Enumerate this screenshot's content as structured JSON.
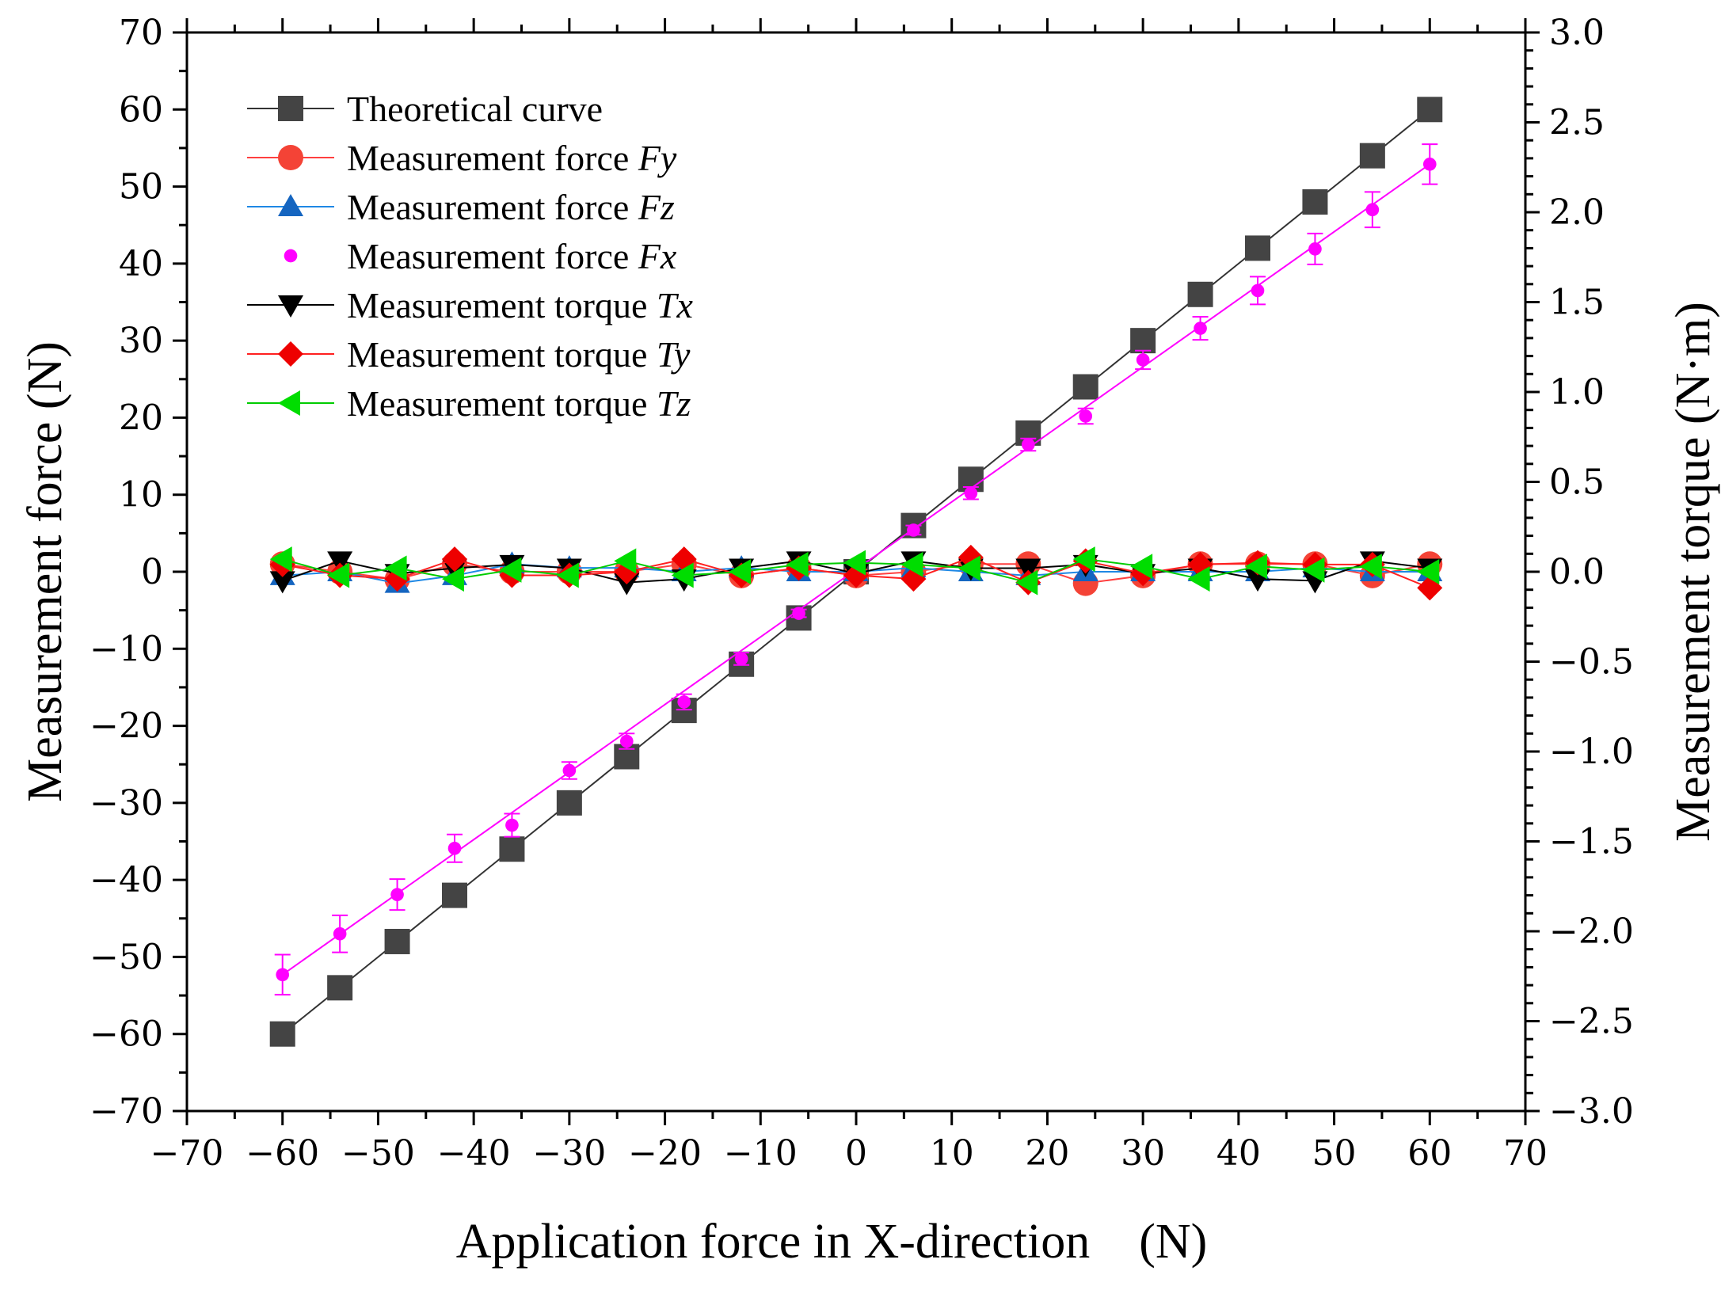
{
  "chart_data": {
    "type": "line",
    "title": "",
    "xlabel": "Application force in X-direction　(N)",
    "ylabel": "Measurement force (N)",
    "y2label": "Measurement torque (N·m)",
    "xlim": [
      -70,
      70
    ],
    "ylim": [
      -70,
      70
    ],
    "y2lim": [
      -3.0,
      3.0
    ],
    "x_ticks": [
      "−70",
      "−60",
      "−50",
      "−40",
      "−30",
      "−20",
      "−10",
      "0",
      "10",
      "20",
      "30",
      "40",
      "50",
      "60",
      "70"
    ],
    "y_ticks": [
      "70",
      "60",
      "50",
      "40",
      "30",
      "20",
      "10",
      "0",
      "−10",
      "−20",
      "−30",
      "−40",
      "−50",
      "−60",
      "−70"
    ],
    "y2_ticks": [
      "3.0",
      "2.5",
      "2.0",
      "1.5",
      "1.0",
      "0.5",
      "0.0",
      "−0.5",
      "−1.0",
      "−1.5",
      "−2.0",
      "−2.5",
      "−3.0"
    ],
    "grid": false,
    "legend_position": "top-left",
    "x": [
      -60,
      -54,
      -48,
      -42,
      -36,
      -30,
      -24,
      -18,
      -12,
      -6,
      0,
      6,
      12,
      18,
      24,
      30,
      36,
      42,
      48,
      54,
      60
    ],
    "series": [
      {
        "name": "Theoretical curve",
        "prefix": "Theoretical curve",
        "italic": "",
        "axis": "left",
        "marker": "square",
        "color": "#444444",
        "line_color": "#333333",
        "values": [
          -60,
          -54,
          -48,
          -42,
          -36,
          -30,
          -24,
          -18,
          -12,
          -6,
          0,
          6,
          12,
          18,
          24,
          30,
          36,
          42,
          48,
          54,
          60
        ]
      },
      {
        "name": "Measurement force Fy",
        "prefix": "Measurement force ",
        "italic": "Fy",
        "axis": "left",
        "marker": "circle",
        "color": "#f44336",
        "line_color": "#ff4040",
        "values": [
          1.0,
          0.0,
          -1.0,
          1.0,
          0.0,
          0.0,
          0.0,
          1.0,
          -0.5,
          0.5,
          -0.5,
          0.0,
          1.0,
          1.0,
          -1.5,
          -0.5,
          1.0,
          1.0,
          1.0,
          -0.5,
          1.0
        ]
      },
      {
        "name": "Measurement force Fz",
        "prefix": "Measurement force ",
        "italic": "Fz",
        "axis": "left",
        "marker": "triangle-up",
        "color": "#1565c0",
        "line_color": "#1e88e5",
        "values": [
          -0.5,
          0.0,
          -1.5,
          -0.5,
          1.0,
          0.5,
          0.5,
          0.0,
          0.5,
          0.0,
          0.0,
          0.5,
          0.0,
          -0.5,
          0.0,
          0.0,
          0.0,
          0.0,
          0.5,
          0.0,
          0.0
        ]
      },
      {
        "name": "Measurement force Fx",
        "prefix": "Measurement force ",
        "italic": "Fx",
        "axis": "left",
        "marker": "dot",
        "color": "#ff00ff",
        "line_color": "#ff00ff",
        "values": [
          -52.3,
          -47.0,
          -41.9,
          -35.9,
          -32.9,
          -25.8,
          -22.0,
          -16.9,
          -11.3,
          -5.4,
          -0.5,
          5.4,
          10.2,
          16.5,
          20.2,
          27.5,
          31.6,
          36.5,
          41.9,
          47.0,
          52.9
        ],
        "errors": [
          2.6,
          2.4,
          2.0,
          1.8,
          1.5,
          1.1,
          1.0,
          1.0,
          0.8,
          0.5,
          0.5,
          0.6,
          0.8,
          0.8,
          1.0,
          1.2,
          1.5,
          1.8,
          2.0,
          2.3,
          2.6
        ]
      },
      {
        "name": "Measurement torque Tx",
        "prefix": "Measurement torque ",
        "italic": "Tx",
        "axis": "right",
        "marker": "triangle-down",
        "color": "#000000",
        "line_color": "#000000",
        "values": [
          -0.05,
          0.06,
          -0.01,
          0.02,
          0.04,
          0.02,
          -0.06,
          -0.04,
          0.02,
          0.06,
          -0.01,
          0.06,
          0.02,
          0.02,
          0.04,
          -0.01,
          0.02,
          -0.04,
          -0.05,
          0.06,
          0.02
        ]
      },
      {
        "name": "Measurement torque Ty",
        "prefix": "Measurement torque ",
        "italic": "Ty",
        "axis": "right",
        "marker": "diamond",
        "color": "#ee0000",
        "line_color": "#ff2020",
        "values": [
          0.04,
          -0.02,
          -0.04,
          0.07,
          -0.02,
          -0.02,
          0.0,
          0.07,
          -0.02,
          0.02,
          -0.02,
          -0.04,
          0.08,
          -0.06,
          0.06,
          -0.01,
          0.04,
          0.05,
          0.04,
          0.04,
          -0.09
        ]
      },
      {
        "name": "Measurement torque Tz",
        "prefix": "Measurement torque ",
        "italic": "Tz",
        "axis": "right",
        "marker": "triangle-left",
        "color": "#00dd00",
        "line_color": "#00cc00",
        "values": [
          0.07,
          -0.02,
          0.02,
          -0.04,
          0.01,
          -0.02,
          0.06,
          -0.02,
          0.0,
          0.04,
          0.05,
          0.04,
          0.02,
          -0.06,
          0.07,
          0.03,
          -0.04,
          0.03,
          0.01,
          0.03,
          0.0
        ]
      }
    ]
  }
}
